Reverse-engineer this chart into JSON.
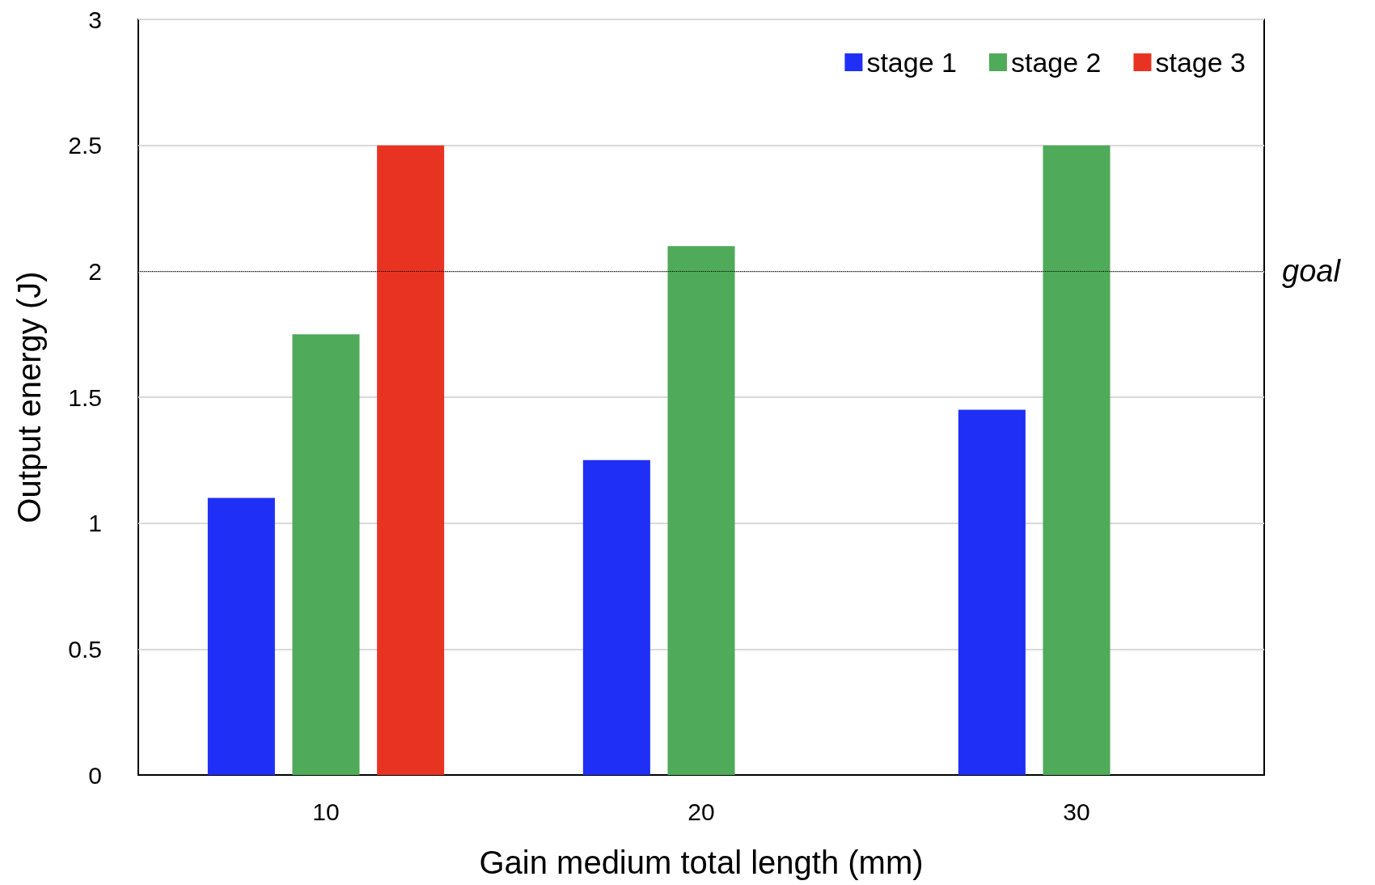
{
  "chart_data": {
    "type": "bar",
    "xlabel": "Gain medium total length (mm)",
    "ylabel": "Output energy (J)",
    "categories": [
      "10",
      "20",
      "30"
    ],
    "series": [
      {
        "name": "stage 1",
        "color": "#1f2ff5",
        "values": [
          1.1,
          1.25,
          1.45
        ]
      },
      {
        "name": "stage 2",
        "color": "#4faa5a",
        "values": [
          1.75,
          2.1,
          2.5
        ]
      },
      {
        "name": "stage 3",
        "color": "#e83323",
        "values": [
          2.5,
          null,
          null
        ]
      }
    ],
    "ylim": [
      0,
      3
    ],
    "yticks": [
      0,
      0.5,
      1,
      1.5,
      2,
      2.5,
      3
    ],
    "grid": "y",
    "legend": "top right",
    "ref_lines": [
      {
        "axis": "y",
        "value": 2,
        "label": "goal",
        "color": "#000000",
        "line_style": "dotted"
      }
    ]
  }
}
